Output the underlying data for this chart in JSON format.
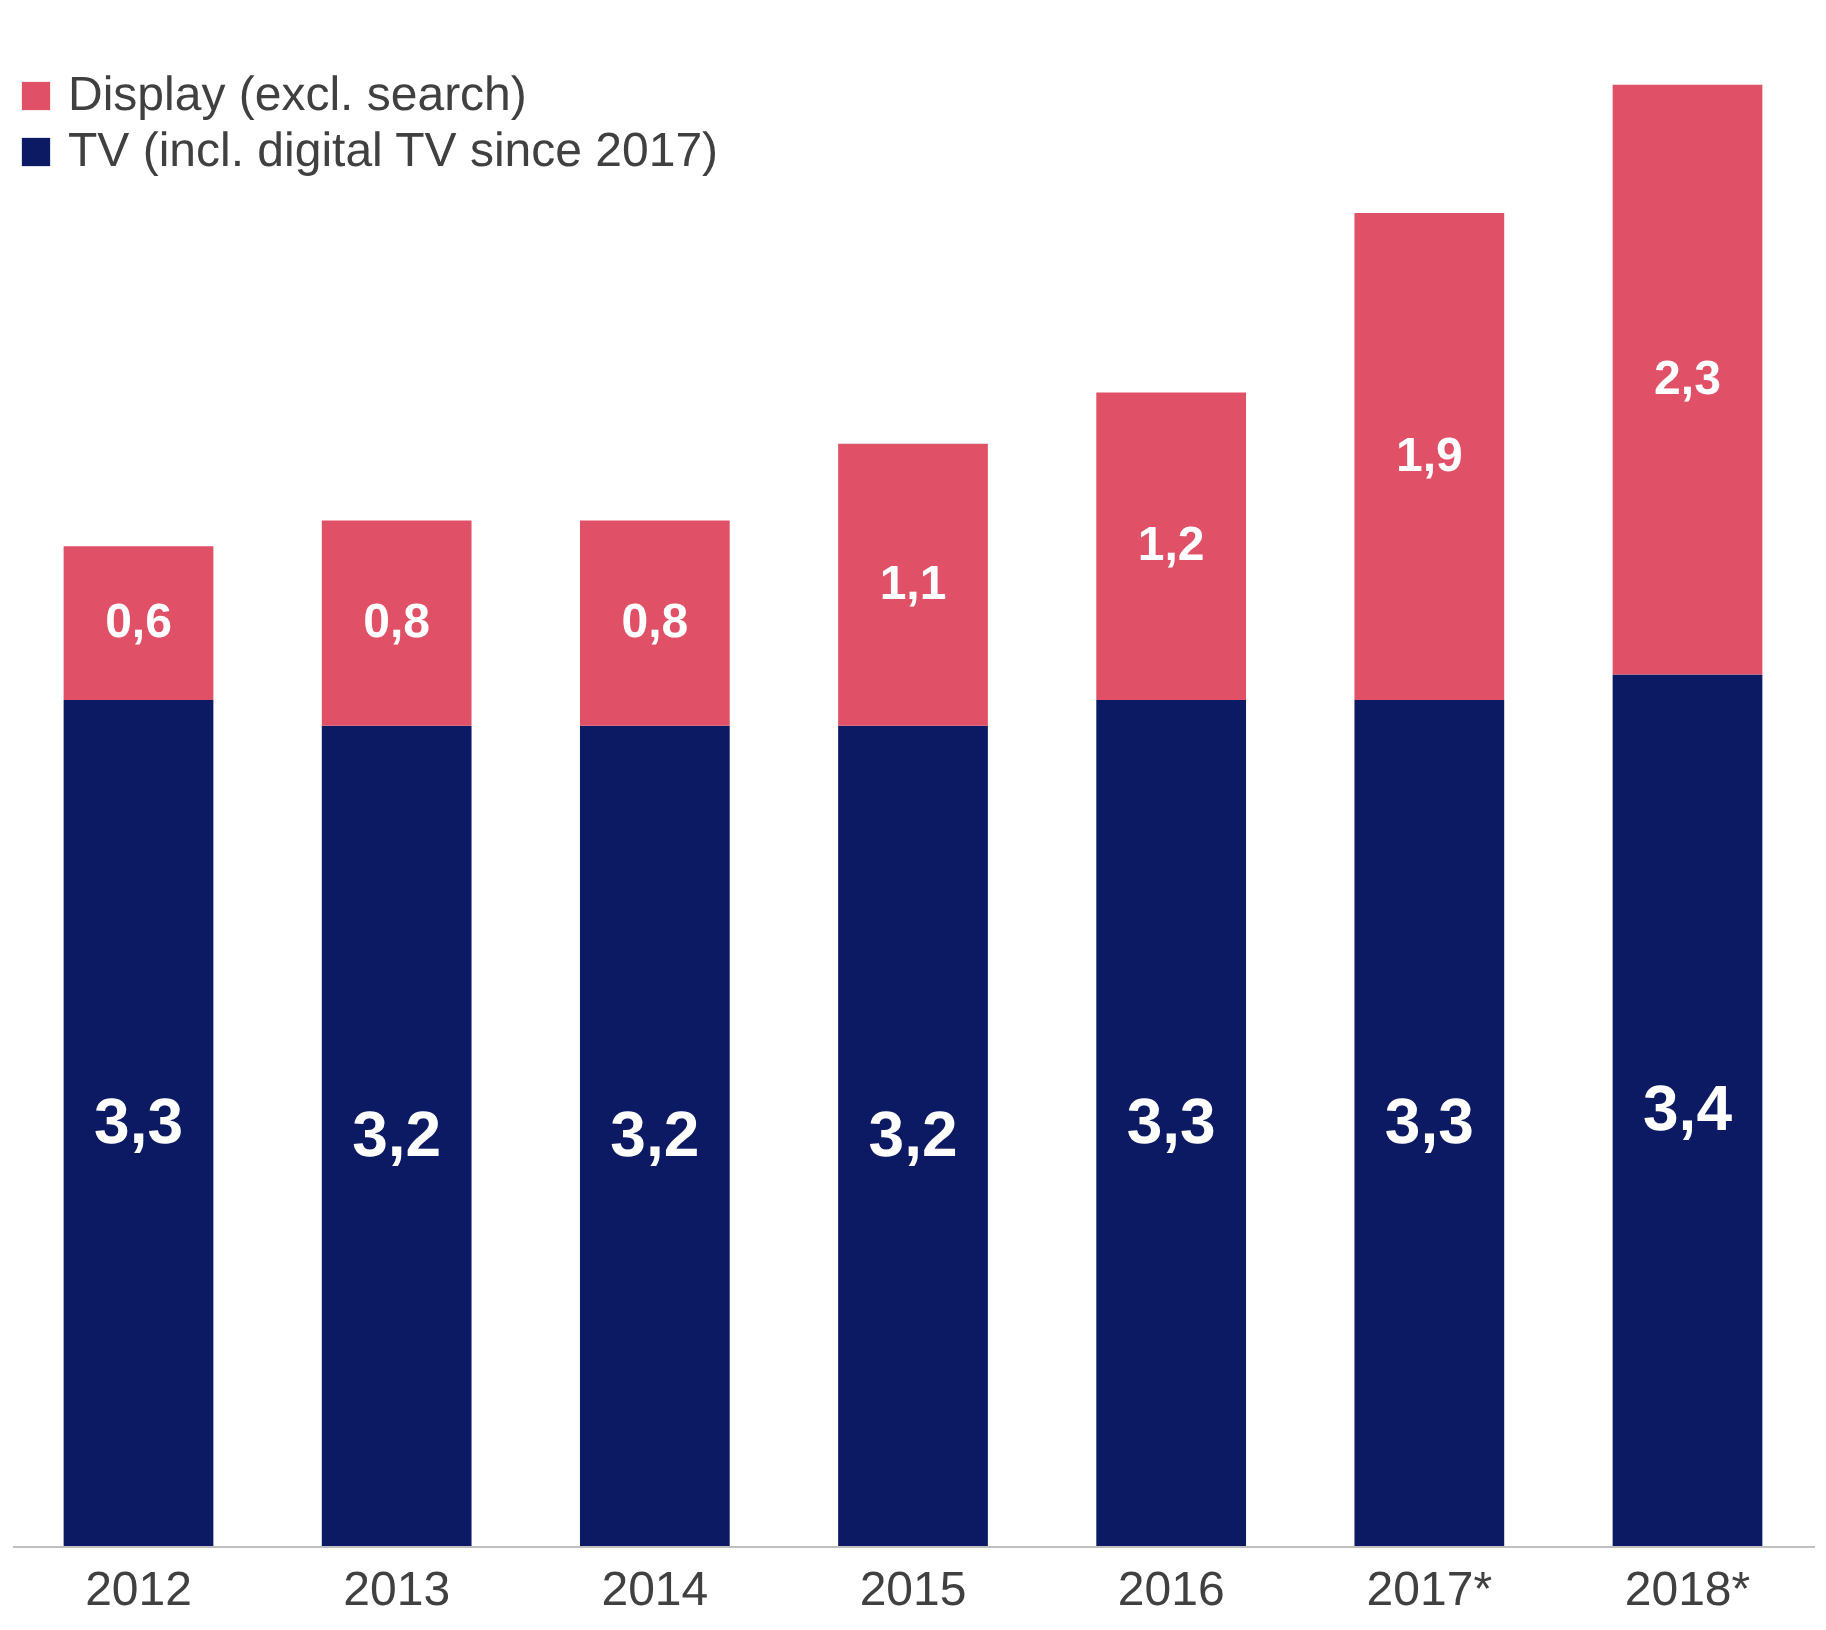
{
  "chart_data": {
    "type": "bar",
    "stacked": true,
    "categories": [
      "2012",
      "2013",
      "2014",
      "2015",
      "2016",
      "2017*",
      "2018*"
    ],
    "series": [
      {
        "name": "TV (incl. digital TV since 2017)",
        "color": "#0b1a63",
        "values": [
          3.3,
          3.2,
          3.2,
          3.2,
          3.3,
          3.3,
          3.4
        ],
        "value_labels": [
          "3,3",
          "3,2",
          "3,2",
          "3,2",
          "3,3",
          "3,3",
          "3,4"
        ]
      },
      {
        "name": "Display (excl. search)",
        "color": "#e05067",
        "values": [
          0.6,
          0.8,
          0.8,
          1.1,
          1.2,
          1.9,
          2.3
        ],
        "value_labels": [
          "0,6",
          "0,8",
          "0,8",
          "1,1",
          "1,2",
          "1,9",
          "2,3"
        ]
      }
    ],
    "ylim": [
      0,
      5.75
    ],
    "tick_labels": "x",
    "legend": "top left",
    "grid": false
  }
}
